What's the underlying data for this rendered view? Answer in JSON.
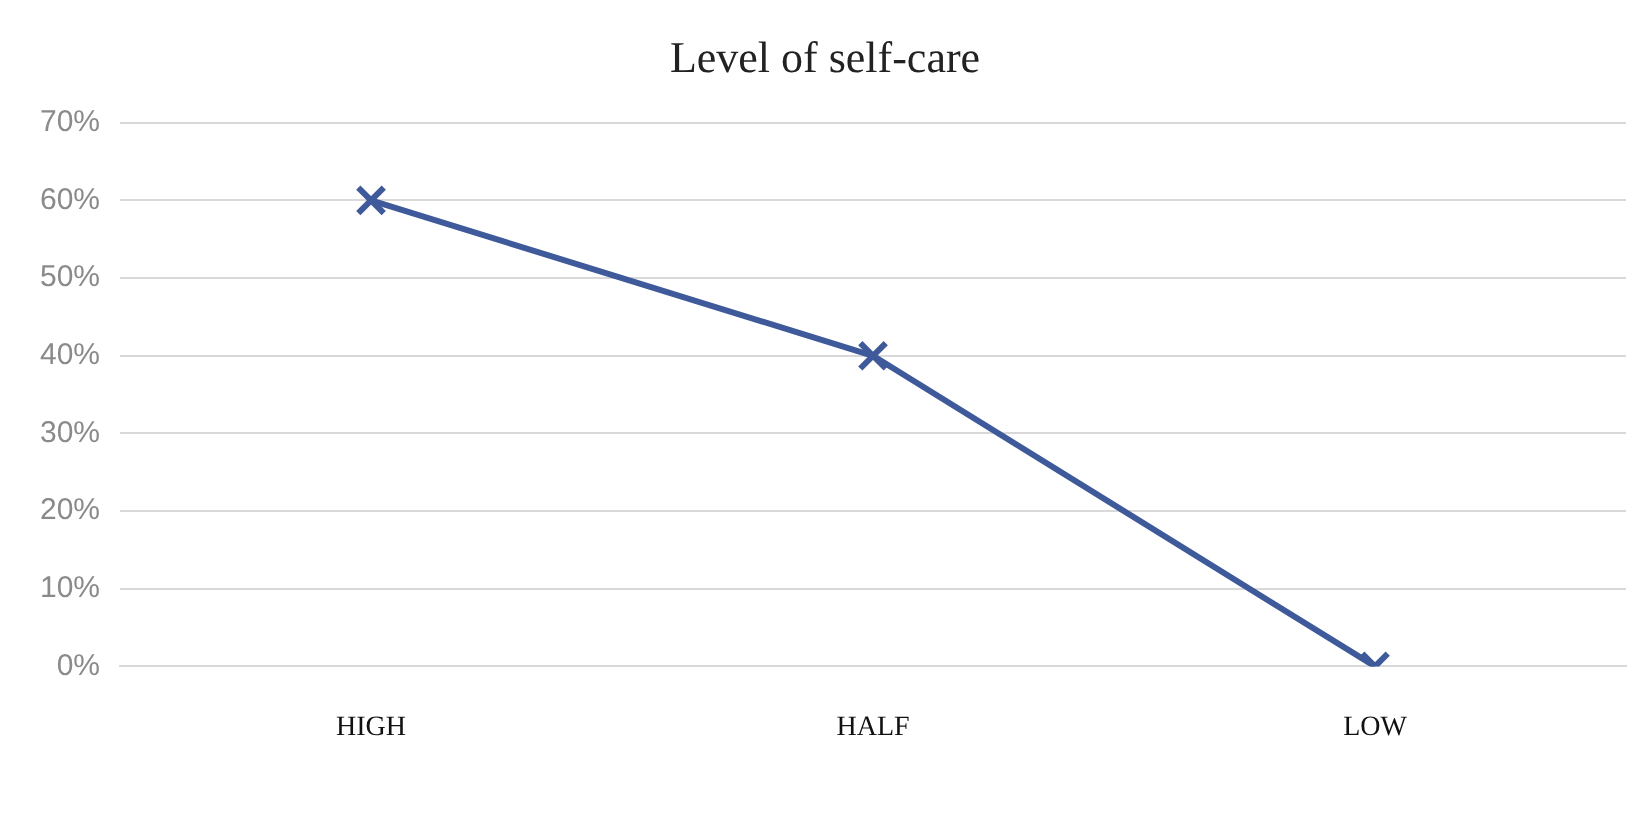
{
  "chart_data": {
    "type": "line",
    "title": "Level of self-care",
    "categories": [
      "HIGH",
      "HALF",
      "LOW"
    ],
    "series": [
      {
        "color": "#3f5a9a",
        "values": [
          60,
          40,
          0
        ]
      }
    ],
    "ylim": [
      0,
      70
    ],
    "yticks": [
      {
        "value": 0,
        "label": "0%"
      },
      {
        "value": 10,
        "label": "10%"
      },
      {
        "value": 20,
        "label": "20%"
      },
      {
        "value": 30,
        "label": "30%"
      },
      {
        "value": 40,
        "label": "40%"
      },
      {
        "value": 50,
        "label": "50%"
      },
      {
        "value": 60,
        "label": "60%"
      },
      {
        "value": 70,
        "label": "70%"
      }
    ],
    "grid": "y",
    "legend": false,
    "marker": "cross",
    "line_style": "solid"
  }
}
